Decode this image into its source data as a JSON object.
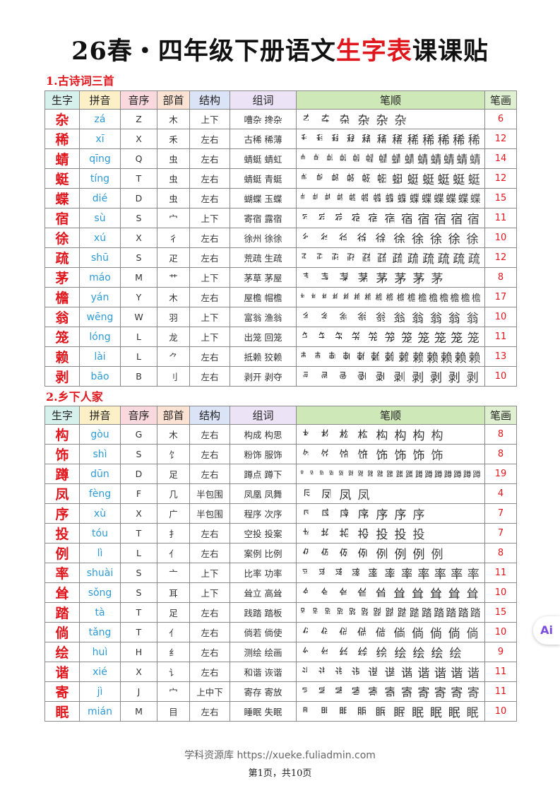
{
  "title": {
    "prefix": "26春・四年级下册语文",
    "highlight": "生字表",
    "suffix": "课课贴"
  },
  "headers": [
    "生字",
    "拼音",
    "音序",
    "部首",
    "结构",
    "组词",
    "笔顺",
    "笔画"
  ],
  "header_colors": [
    "#d6f0ec",
    "#fdf0c6",
    "#f9d9de",
    "#fbe2d3",
    "#dbe3f7",
    "#ede3f7",
    "#cfe8b8",
    "#dff0d0"
  ],
  "sections": [
    {
      "title": "1.古诗词三首",
      "rows": [
        [
          "杂",
          "zá",
          "Z",
          "木",
          "上下",
          "嘈杂 搀杂",
          "6"
        ],
        [
          "稀",
          "xī",
          "X",
          "禾",
          "左右",
          "古稀 稀薄",
          "12"
        ],
        [
          "蜻",
          "qīng",
          "Q",
          "虫",
          "左右",
          "蜻蜓 蜻虹",
          "14"
        ],
        [
          "蜓",
          "tíng",
          "T",
          "虫",
          "左右",
          "蜻蜓 青蜓",
          "12"
        ],
        [
          "蝶",
          "dié",
          "D",
          "虫",
          "左右",
          "蝴蝶 玉蝶",
          "15"
        ],
        [
          "宿",
          "sù",
          "S",
          "宀",
          "上下",
          "寄宿 露宿",
          "11"
        ],
        [
          "徐",
          "xú",
          "X",
          "彳",
          "左右",
          "徐州 徐徐",
          "10"
        ],
        [
          "疏",
          "shū",
          "S",
          "疋",
          "左右",
          "荒疏 生疏",
          "12"
        ],
        [
          "茅",
          "máo",
          "M",
          "艹",
          "上下",
          "茅草 茅屋",
          "8"
        ],
        [
          "檐",
          "yán",
          "Y",
          "木",
          "左右",
          "屋檐 帽檐",
          "17"
        ],
        [
          "翁",
          "wēng",
          "W",
          "羽",
          "上下",
          "富翁 渔翁",
          "10"
        ],
        [
          "笼",
          "lóng",
          "L",
          "龙",
          "上下",
          "出笼 回笼",
          "11"
        ],
        [
          "赖",
          "lài",
          "L",
          "⺈",
          "左右",
          "抵赖 狡赖",
          "13"
        ],
        [
          "剥",
          "bāo",
          "B",
          "刂",
          "左右",
          "剥开 剥夺",
          "10"
        ]
      ]
    },
    {
      "title": "2.乡下人家",
      "rows": [
        [
          "构",
          "gòu",
          "G",
          "木",
          "左右",
          "构成 构思",
          "8"
        ],
        [
          "饰",
          "shì",
          "S",
          "饣",
          "左右",
          "粉饰 服饰",
          "8"
        ],
        [
          "蹲",
          "dūn",
          "D",
          "足",
          "左右",
          "蹲点 蹲下",
          "19"
        ],
        [
          "凤",
          "fèng",
          "F",
          "几",
          "半包围",
          "凤凰 凤舞",
          "4"
        ],
        [
          "序",
          "xù",
          "X",
          "广",
          "半包围",
          "程序 次序",
          "7"
        ],
        [
          "投",
          "tóu",
          "T",
          "扌",
          "左右",
          "空投 投案",
          "7"
        ],
        [
          "例",
          "lì",
          "L",
          "亻",
          "左右",
          "案例 比例",
          "8"
        ],
        [
          "率",
          "shuài",
          "S",
          "亠",
          "上下",
          "比率 功率",
          "11"
        ],
        [
          "耸",
          "sǒng",
          "S",
          "耳",
          "上下",
          "耸立 高耸",
          "10"
        ],
        [
          "踏",
          "tà",
          "T",
          "足",
          "左右",
          "践踏 踏板",
          "15"
        ],
        [
          "倘",
          "tǎng",
          "T",
          "亻",
          "左右",
          "倘若 倘使",
          "10"
        ],
        [
          "绘",
          "huì",
          "H",
          "纟",
          "左右",
          "测绘 绘画",
          "9"
        ],
        [
          "谐",
          "xié",
          "X",
          "讠",
          "左右",
          "和谐 诙谐",
          "11"
        ],
        [
          "寄",
          "jì",
          "J",
          "宀",
          "上中下",
          "寄存 寄放",
          "11"
        ],
        [
          "眠",
          "mián",
          "M",
          "目",
          "左右",
          "睡眠 失眠",
          "10"
        ]
      ]
    }
  ],
  "ai_badge": "Ai",
  "footer": {
    "watermark": "学科资源库 https://xueke.fuliadmin.com",
    "page": "第1页，共10页"
  }
}
